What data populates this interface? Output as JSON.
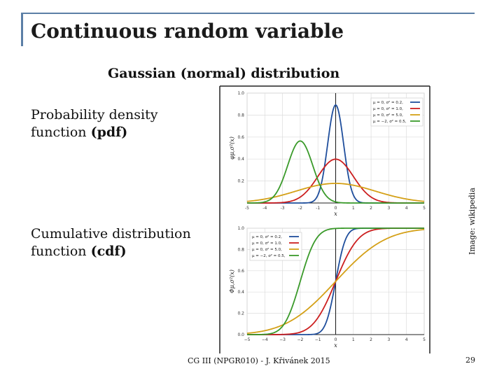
{
  "slide": {
    "title": "Continuous random variable",
    "subtitle": "Gaussian (normal) distribution",
    "pdf_label_line1": "Probability density",
    "pdf_label_line2_prefix": "function ",
    "pdf_label_line2_bold": "(pdf)",
    "cdf_label_line1": "Cumulative distribution",
    "cdf_label_line2_prefix": "function ",
    "cdf_label_line2_bold": "(cdf)",
    "image_credit": "Image: wikipedia",
    "footer": "CG III (NPGR010) - J. Křivánek 2015",
    "page_number": "29"
  },
  "colors": {
    "title_rule": "#5b7fa6",
    "series": [
      "#1f4e9c",
      "#cc1f1f",
      "#d4a017",
      "#3a9a2a"
    ]
  },
  "chart_data": [
    {
      "type": "line",
      "name": "pdf",
      "xlabel": "x",
      "ylabel": "φμ,σ²(x)",
      "xlim": [
        -5,
        5
      ],
      "ylim": [
        0,
        1.0
      ],
      "xticks": [
        "-5",
        "-4",
        "-3",
        "-2",
        "-1",
        "0",
        "1",
        "2",
        "3",
        "4",
        "5"
      ],
      "yticks": [
        "0.2",
        "0.4",
        "0.6",
        "0.8",
        "1.0"
      ],
      "grid": true,
      "legend_position": "top-right",
      "series": [
        {
          "legend": "μ = 0,    σ² = 0.2,",
          "mu": 0,
          "var": 0.2
        },
        {
          "legend": "μ = 0,    σ² = 1.0,",
          "mu": 0,
          "var": 1.0
        },
        {
          "legend": "μ = 0,    σ² = 5.0,",
          "mu": 0,
          "var": 5.0
        },
        {
          "legend": "μ = −2,  σ² = 0.5,",
          "mu": -2,
          "var": 0.5
        }
      ]
    },
    {
      "type": "line",
      "name": "cdf",
      "xlabel": "x",
      "ylabel": "Φμ,σ²(x)",
      "xlim": [
        -5,
        5
      ],
      "ylim": [
        0,
        1.0
      ],
      "xticks": [
        "−5",
        "−4",
        "−3",
        "−2",
        "−1",
        "0",
        "1",
        "2",
        "3",
        "4",
        "5"
      ],
      "yticks": [
        "0.0",
        "0.2",
        "0.4",
        "0.6",
        "0.8",
        "1.0"
      ],
      "grid": true,
      "legend_position": "top-left",
      "series": [
        {
          "legend": "μ = 0,    σ² = 0.2,",
          "mu": 0,
          "var": 0.2
        },
        {
          "legend": "μ = 0,    σ² = 1.0,",
          "mu": 0,
          "var": 1.0
        },
        {
          "legend": "μ = 0,    σ² = 5.0,",
          "mu": 0,
          "var": 5.0
        },
        {
          "legend": "μ = −2,  σ² = 0.5,",
          "mu": -2,
          "var": 0.5
        }
      ]
    }
  ]
}
